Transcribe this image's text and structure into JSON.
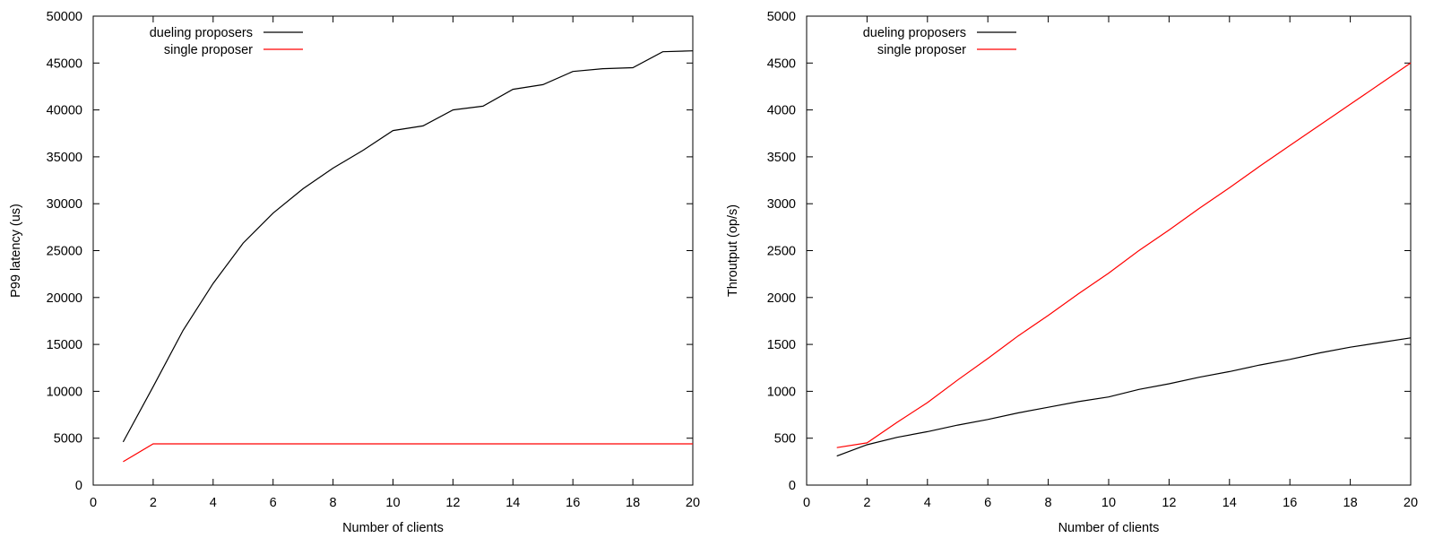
{
  "chart_data": [
    {
      "type": "line",
      "title": "",
      "xlabel": "Number of clients",
      "ylabel": "P99 latency (us)",
      "xlim": [
        0,
        20
      ],
      "ylim": [
        0,
        50000
      ],
      "xticks": [
        0,
        2,
        4,
        6,
        8,
        10,
        12,
        14,
        16,
        18,
        20
      ],
      "yticks": [
        0,
        5000,
        10000,
        15000,
        20000,
        25000,
        30000,
        35000,
        40000,
        45000,
        50000
      ],
      "grid": false,
      "legend_position": "top-left",
      "series": [
        {
          "name": "dueling proposers",
          "color": "#000000",
          "x": [
            1,
            2,
            3,
            4,
            5,
            6,
            7,
            8,
            9,
            10,
            11,
            12,
            13,
            14,
            15,
            16,
            17,
            18,
            19,
            20
          ],
          "y": [
            4600,
            10500,
            16500,
            21500,
            25800,
            29000,
            31600,
            33800,
            35700,
            37800,
            38300,
            40000,
            40400,
            42200,
            42700,
            44100,
            44400,
            44500,
            46200,
            46300
          ]
        },
        {
          "name": "single proposer",
          "color": "#ff0000",
          "x": [
            1,
            2,
            3,
            4,
            5,
            6,
            7,
            8,
            9,
            10,
            11,
            12,
            13,
            14,
            15,
            16,
            17,
            18,
            19,
            20
          ],
          "y": [
            2500,
            4400,
            4400,
            4400,
            4400,
            4400,
            4400,
            4400,
            4400,
            4400,
            4400,
            4400,
            4400,
            4400,
            4400,
            4400,
            4400,
            4400,
            4400,
            4400
          ]
        }
      ]
    },
    {
      "type": "line",
      "title": "",
      "xlabel": "Number of clients",
      "ylabel": "Throutput (op/s)",
      "xlim": [
        0,
        20
      ],
      "ylim": [
        0,
        5000
      ],
      "xticks": [
        0,
        2,
        4,
        6,
        8,
        10,
        12,
        14,
        16,
        18,
        20
      ],
      "yticks": [
        0,
        500,
        1000,
        1500,
        2000,
        2500,
        3000,
        3500,
        4000,
        4500,
        5000
      ],
      "grid": false,
      "legend_position": "top-left",
      "series": [
        {
          "name": "dueling proposers",
          "color": "#000000",
          "x": [
            1,
            2,
            3,
            4,
            5,
            6,
            7,
            8,
            9,
            10,
            11,
            12,
            13,
            14,
            15,
            16,
            17,
            18,
            19,
            20
          ],
          "y": [
            310,
            430,
            510,
            570,
            640,
            700,
            770,
            830,
            890,
            940,
            1020,
            1080,
            1150,
            1210,
            1280,
            1340,
            1410,
            1470,
            1520,
            1570
          ]
        },
        {
          "name": "single proposer",
          "color": "#ff0000",
          "x": [
            1,
            2,
            3,
            4,
            5,
            6,
            7,
            8,
            9,
            10,
            11,
            12,
            13,
            14,
            15,
            16,
            17,
            18,
            19,
            20
          ],
          "y": [
            400,
            450,
            670,
            880,
            1120,
            1350,
            1590,
            1810,
            2040,
            2260,
            2500,
            2720,
            2950,
            3170,
            3400,
            3620,
            3840,
            4060,
            4280,
            4500
          ]
        }
      ]
    }
  ]
}
